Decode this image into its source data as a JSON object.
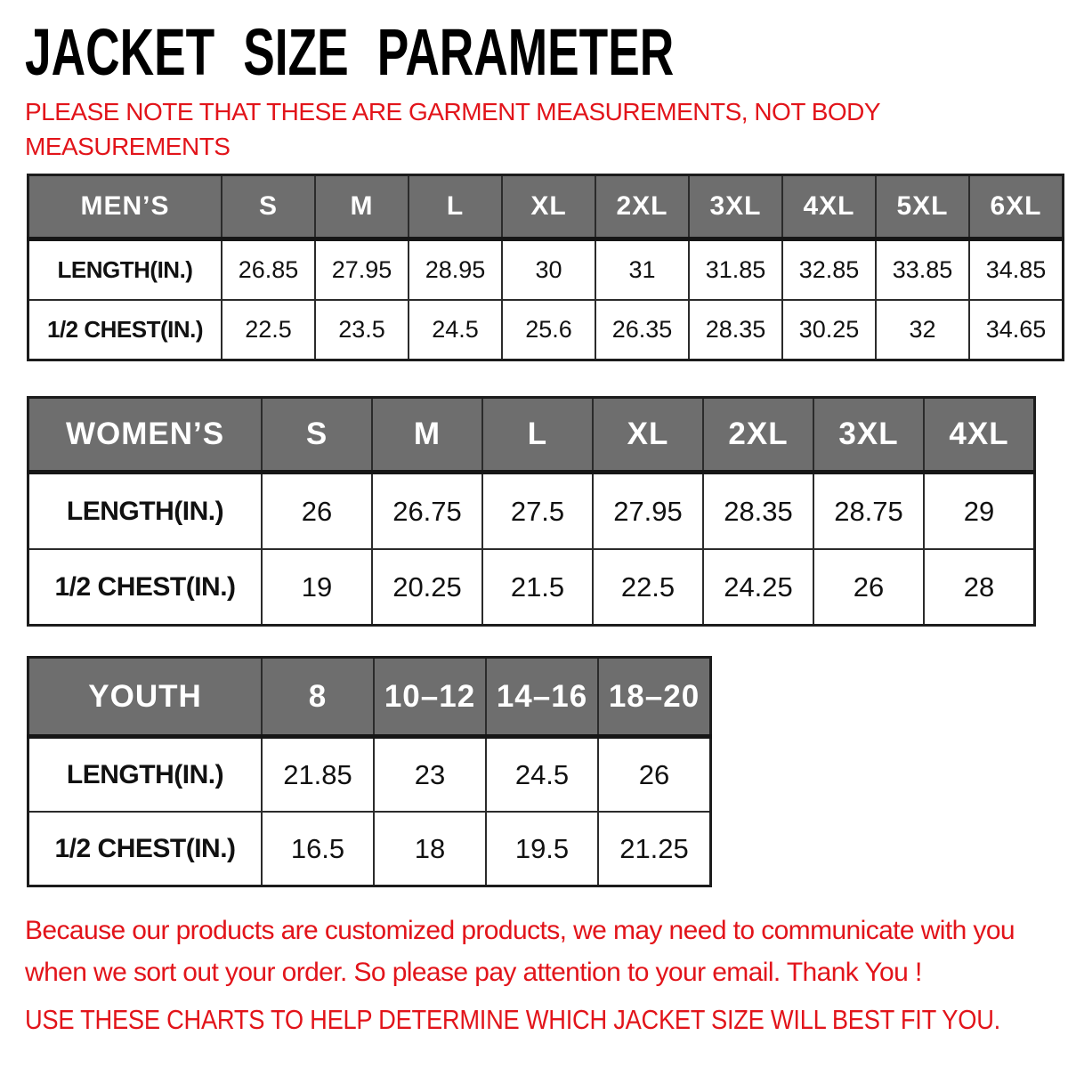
{
  "title": "JACKET SIZE PARAMETER",
  "note_lines": [
    "PLEASE NOTE THAT THESE ARE GARMENT MEASUREMENTS, NOT BODY",
    "MEASUREMENTS"
  ],
  "colors": {
    "accent_red": "#e2141a",
    "header_gray": "#6e6e6e",
    "border_dark": "#1c1c1c",
    "text_black": "#000000"
  },
  "tables": [
    {
      "name": "mens",
      "header": [
        "MEN’S",
        "S",
        "M",
        "L",
        "XL",
        "2XL",
        "3XL",
        "4XL",
        "5XL",
        "6XL"
      ],
      "rows": [
        [
          "LENGTH(IN.)",
          "26.85",
          "27.95",
          "28.95",
          "30",
          "31",
          "31.85",
          "32.85",
          "33.85",
          "34.85"
        ],
        [
          "1/2 CHEST(IN.)",
          "22.5",
          "23.5",
          "24.5",
          "25.6",
          "26.35",
          "28.35",
          "30.25",
          "32",
          "34.65"
        ]
      ]
    },
    {
      "name": "womens",
      "header": [
        "WOMEN’S",
        "S",
        "M",
        "L",
        "XL",
        "2XL",
        "3XL",
        "4XL"
      ],
      "rows": [
        [
          "LENGTH(IN.)",
          "26",
          "26.75",
          "27.5",
          "27.95",
          "28.35",
          "28.75",
          "29"
        ],
        [
          "1/2 CHEST(IN.)",
          "19",
          "20.25",
          "21.5",
          "22.5",
          "24.25",
          "26",
          "28"
        ]
      ]
    },
    {
      "name": "youth",
      "header": [
        "YOUTH",
        "8",
        "10–12",
        "14–16",
        "18–20"
      ],
      "rows": [
        [
          "LENGTH(IN.)",
          "21.85",
          "23",
          "24.5",
          "26"
        ],
        [
          "1/2 CHEST(IN.)",
          "16.5",
          "18",
          "19.5",
          "21.25"
        ]
      ]
    }
  ],
  "footer": {
    "paragraph_lines": [
      "Because our products are customized products, we may need to communicate with you",
      "when we sort out your order. So please pay attention to your email. Thank You !"
    ],
    "closing_line": "USE THESE CHARTS TO HELP DETERMINE WHICH JACKET SIZE WILL BEST FIT YOU."
  }
}
